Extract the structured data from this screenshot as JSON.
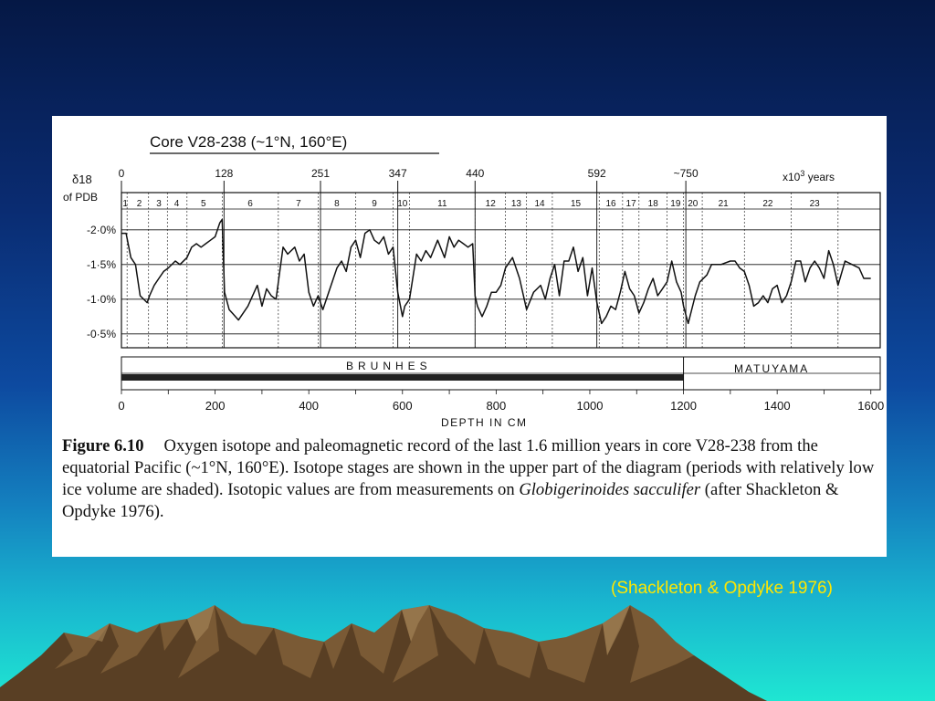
{
  "chart_data": {
    "type": "line",
    "title": "Core V28-238 (~1°N, 160°E)",
    "ylabel_line1": "δ18",
    "ylabel_line2": "of PDB",
    "yticks": [
      "-2·0%",
      "-1·5%",
      "-1·0%",
      "-0·5%"
    ],
    "ytick_values": [
      -2.0,
      -1.5,
      -1.0,
      -0.5
    ],
    "ylim": [
      -2.3,
      -0.3
    ],
    "xlim": [
      0,
      1620
    ],
    "xlabel": "DEPTH IN CM",
    "xtick_labels": [
      "0",
      "200",
      "400",
      "600",
      "800",
      "1000",
      "1200",
      "1400",
      "1600"
    ],
    "xtick_values": [
      0,
      200,
      400,
      600,
      800,
      1000,
      1200,
      1400,
      1600
    ],
    "age_markers": [
      {
        "label": "0",
        "depth": 0
      },
      {
        "label": "128",
        "depth": 219
      },
      {
        "label": "251",
        "depth": 425
      },
      {
        "label": "347",
        "depth": 590
      },
      {
        "label": "440",
        "depth": 755
      },
      {
        "label": "592",
        "depth": 1015
      },
      {
        "label": "~750",
        "depth": 1205
      }
    ],
    "age_units_prefix": "x10",
    "age_units_sup": "3",
    "age_units_suffix": " years",
    "stage_boundaries": [
      12,
      58,
      98,
      140,
      215,
      335,
      420,
      500,
      580,
      615,
      755,
      820,
      865,
      920,
      1020,
      1070,
      1105,
      1165,
      1200,
      1240,
      1330,
      1430,
      1530
    ],
    "stages": [
      {
        "label": "1",
        "depth": 8
      },
      {
        "label": "2",
        "depth": 38
      },
      {
        "label": "3",
        "depth": 80
      },
      {
        "label": "4",
        "depth": 118
      },
      {
        "label": "5",
        "depth": 175
      },
      {
        "label": "6",
        "depth": 275
      },
      {
        "label": "7",
        "depth": 378
      },
      {
        "label": "8",
        "depth": 460
      },
      {
        "label": "9",
        "depth": 540
      },
      {
        "label": "10",
        "depth": 600
      },
      {
        "label": "11",
        "depth": 685
      },
      {
        "label": "12",
        "depth": 788
      },
      {
        "label": "13",
        "depth": 843
      },
      {
        "label": "14",
        "depth": 893
      },
      {
        "label": "15",
        "depth": 970
      },
      {
        "label": "16",
        "depth": 1045
      },
      {
        "label": "17",
        "depth": 1088
      },
      {
        "label": "18",
        "depth": 1135
      },
      {
        "label": "19",
        "depth": 1183
      },
      {
        "label": "20",
        "depth": 1220
      },
      {
        "label": "21",
        "depth": 1285
      },
      {
        "label": "22",
        "depth": 1380
      },
      {
        "label": "23",
        "depth": 1480
      }
    ],
    "series": [
      {
        "x": [
          0,
          10,
          20,
          30,
          40,
          55,
          60,
          70,
          80,
          90,
          100,
          115,
          125,
          140,
          150,
          160,
          170,
          180,
          190,
          200,
          210,
          215,
          220,
          230,
          250,
          270,
          290,
          300,
          310,
          320,
          330,
          345,
          355,
          370,
          380,
          390,
          400,
          410,
          420,
          430,
          445,
          460,
          470,
          480,
          490,
          500,
          510,
          520,
          530,
          540,
          550,
          560,
          570,
          580,
          590,
          600,
          605,
          615,
          630,
          640,
          650,
          660,
          675,
          690,
          700,
          710,
          720,
          730,
          740,
          750,
          755,
          760,
          770,
          780,
          790,
          800,
          810,
          820,
          835,
          850,
          865,
          880,
          895,
          905,
          915,
          925,
          935,
          945,
          955,
          965,
          975,
          985,
          995,
          1005,
          1015,
          1025,
          1035,
          1045,
          1055,
          1065,
          1075,
          1085,
          1095,
          1105,
          1115,
          1125,
          1135,
          1145,
          1155,
          1165,
          1175,
          1185,
          1195,
          1200,
          1210,
          1225,
          1235,
          1250,
          1260,
          1280,
          1300,
          1310,
          1320,
          1330,
          1340,
          1350,
          1360,
          1370,
          1380,
          1390,
          1400,
          1410,
          1420,
          1430,
          1440,
          1450,
          1460,
          1470,
          1480,
          1490,
          1500,
          1510,
          1520,
          1530,
          1545,
          1560,
          1575,
          1585,
          1600
        ],
        "y": [
          -1.95,
          -1.95,
          -1.6,
          -1.5,
          -1.05,
          -0.95,
          -1.05,
          -1.2,
          -1.3,
          -1.4,
          -1.45,
          -1.55,
          -1.5,
          -1.6,
          -1.75,
          -1.8,
          -1.75,
          -1.8,
          -1.85,
          -1.9,
          -2.1,
          -2.15,
          -1.1,
          -0.85,
          -0.7,
          -0.9,
          -1.2,
          -0.9,
          -1.15,
          -1.05,
          -1.0,
          -1.75,
          -1.65,
          -1.75,
          -1.55,
          -1.65,
          -1.1,
          -0.9,
          -1.05,
          -0.85,
          -1.15,
          -1.45,
          -1.55,
          -1.4,
          -1.75,
          -1.85,
          -1.6,
          -1.95,
          -2.0,
          -1.85,
          -1.8,
          -1.9,
          -1.65,
          -1.75,
          -1.1,
          -0.75,
          -0.9,
          -1.0,
          -1.65,
          -1.55,
          -1.7,
          -1.6,
          -1.85,
          -1.6,
          -1.9,
          -1.75,
          -1.85,
          -1.8,
          -1.75,
          -1.8,
          -1.05,
          -0.9,
          -0.75,
          -0.9,
          -1.1,
          -1.1,
          -1.2,
          -1.45,
          -1.6,
          -1.3,
          -0.85,
          -1.1,
          -1.2,
          -1.0,
          -1.3,
          -1.5,
          -1.05,
          -1.55,
          -1.55,
          -1.75,
          -1.4,
          -1.6,
          -1.05,
          -1.45,
          -0.95,
          -0.65,
          -0.75,
          -0.9,
          -0.85,
          -1.1,
          -1.4,
          -1.15,
          -1.05,
          -0.8,
          -0.95,
          -1.15,
          -1.3,
          -1.05,
          -1.15,
          -1.25,
          -1.55,
          -1.25,
          -1.1,
          -0.9,
          -0.65,
          -1.05,
          -1.25,
          -1.35,
          -1.5,
          -1.5,
          -1.55,
          -1.55,
          -1.45,
          -1.4,
          -1.2,
          -0.9,
          -0.95,
          -1.05,
          -0.95,
          -1.15,
          -1.2,
          -0.95,
          -1.05,
          -1.25,
          -1.55,
          -1.55,
          -1.25,
          -1.45,
          -1.55,
          -1.45,
          -1.3,
          -1.7,
          -1.5,
          -1.2,
          -1.55,
          -1.5,
          -1.45,
          -1.3,
          -1.3
        ]
      }
    ],
    "magnetic_label_left": "BRUNHES",
    "magnetic_label_right": "MATUYAMA",
    "magnetic_boundary_depth": 1200,
    "grid": "horizontal lines at y ticks"
  },
  "caption": {
    "label": "Figure 6.10",
    "text_part1": "Oxygen isotope and paleomagnetic record of the last 1.6 million years in core V28-238 from the equatorial Pacific (~1°N, 160°E). Isotope stages are shown in the upper part of the diagram (periods with relatively low ice volume are shaded). Isotopic values are from measurements on ",
    "species": "Globigerinoides sacculifer",
    "text_part2": " (after Shackleton & Opdyke 1976)."
  },
  "credit": "(Shackleton & Opdyke 1976)",
  "colors": {
    "credit": "#ffe600",
    "mountain_body": "#7a5a35",
    "mountain_shade": "#3e2a16",
    "mountain_light": "#a6875a"
  }
}
